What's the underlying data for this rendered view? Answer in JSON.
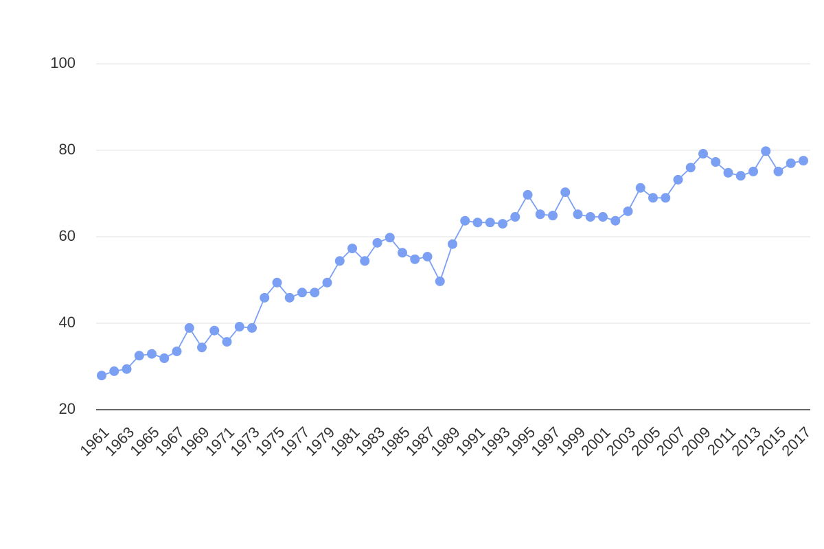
{
  "chart_data": {
    "type": "line",
    "x": [
      1961,
      1962,
      1963,
      1964,
      1965,
      1966,
      1967,
      1968,
      1969,
      1970,
      1971,
      1972,
      1973,
      1974,
      1975,
      1976,
      1977,
      1978,
      1979,
      1980,
      1981,
      1982,
      1983,
      1984,
      1985,
      1986,
      1987,
      1988,
      1989,
      1990,
      1991,
      1992,
      1993,
      1994,
      1995,
      1996,
      1997,
      1998,
      1999,
      2000,
      2001,
      2002,
      2003,
      2004,
      2005,
      2006,
      2007,
      2008,
      2009,
      2010,
      2011,
      2012,
      2013,
      2014,
      2015,
      2016,
      2017
    ],
    "series": [
      {
        "color": "#7b9ff2",
        "values": [
          27.9,
          28.9,
          29.4,
          32.5,
          32.9,
          31.9,
          33.5,
          38.9,
          34.4,
          38.3,
          35.7,
          39.2,
          38.9,
          45.9,
          49.4,
          45.9,
          47.1,
          47.1,
          49.4,
          54.4,
          57.3,
          54.4,
          58.6,
          59.8,
          56.3,
          54.8,
          55.4,
          49.7,
          58.3,
          63.7,
          63.3,
          63.3,
          63.0,
          64.6,
          69.7,
          65.2,
          64.9,
          70.3,
          65.2,
          64.6,
          64.6,
          63.7,
          65.9,
          71.3,
          69.0,
          69.0,
          73.2,
          76.0,
          79.2,
          77.3,
          74.8,
          74.1,
          75.1,
          79.8,
          75.1,
          77.0,
          77.6
        ]
      }
    ],
    "xlim": [
      1961,
      2017
    ],
    "xticks": [
      1961,
      1963,
      1965,
      1967,
      1969,
      1971,
      1973,
      1975,
      1977,
      1979,
      1981,
      1983,
      1985,
      1987,
      1989,
      1991,
      1993,
      1995,
      1997,
      1999,
      2001,
      2003,
      2005,
      2007,
      2009,
      2011,
      2013,
      2015,
      2017
    ],
    "ylim": [
      20,
      100
    ],
    "yticks": [
      20,
      40,
      60,
      80,
      100
    ],
    "grid": true
  }
}
